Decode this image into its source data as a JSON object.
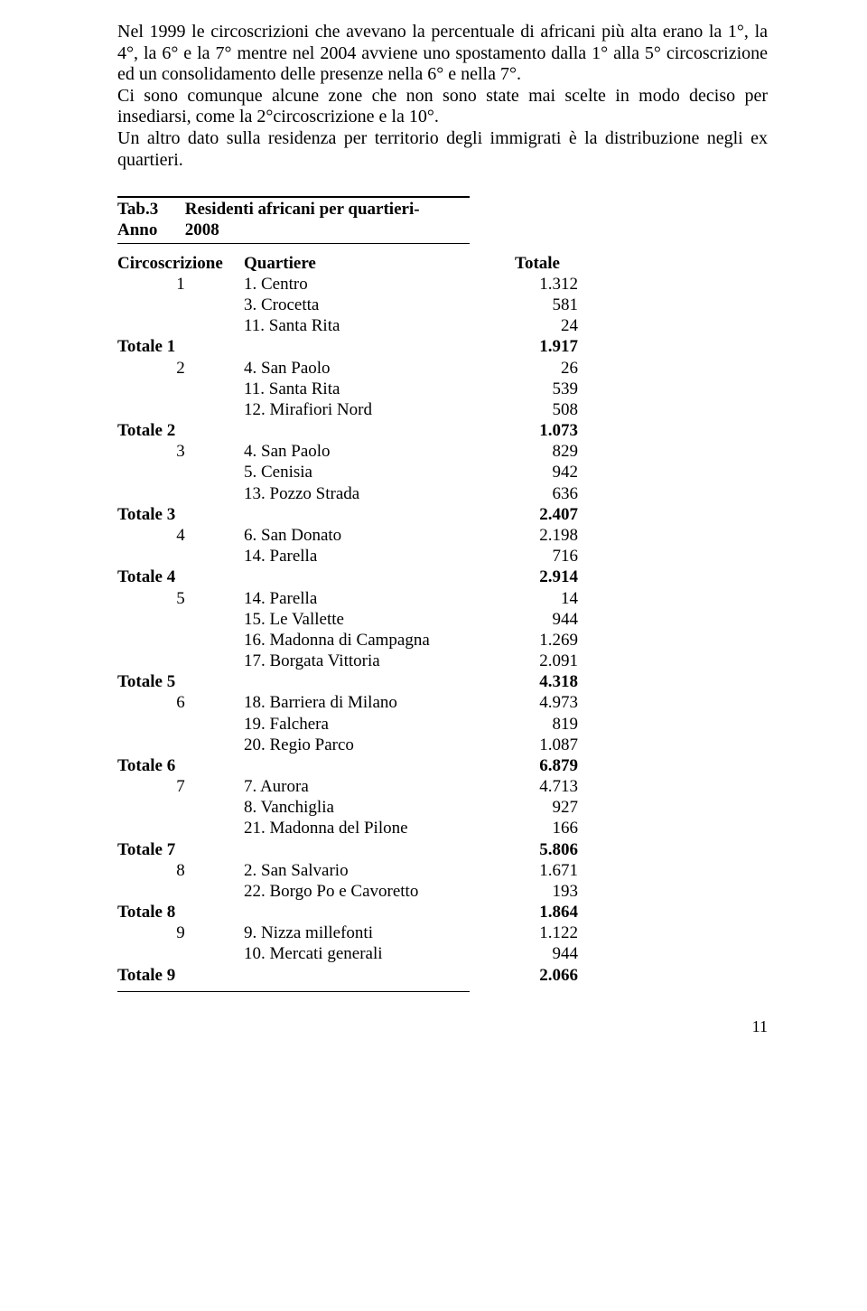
{
  "paragraph": "Nel 1999 le circoscrizioni che avevano la percentuale di africani più alta erano la 1°, la 4°, la 6° e la 7° mentre nel 2004 avviene  uno spostamento dalla 1° alla 5° circoscrizione ed un consolidamento delle presenze nella 6° e nella 7°.\nCi sono comunque alcune zone che non sono state mai scelte in modo deciso per insediarsi,  come la 2°circoscrizione e la 10°.\nUn altro dato sulla residenza per territorio degli immigrati è la distribuzione negli ex quartieri.",
  "caption": {
    "l1a": "Tab.3",
    "l1b": "Residenti africani per quartieri-",
    "l2a": "Anno",
    "l2b": "2008"
  },
  "headers": {
    "c1": "Circoscrizione",
    "c2": "Quartiere",
    "c3": "Totale"
  },
  "rows": [
    {
      "t": "d",
      "circ": "1",
      "q": "1. Centro",
      "v": "1.312"
    },
    {
      "t": "d",
      "circ": "",
      "q": "3. Crocetta",
      "v": "581"
    },
    {
      "t": "d",
      "circ": "",
      "q": "11. Santa Rita",
      "v": "24"
    },
    {
      "t": "tot",
      "label": "Totale 1",
      "v": "1.917"
    },
    {
      "t": "d",
      "circ": "2",
      "q": "4. San Paolo",
      "v": "26"
    },
    {
      "t": "d",
      "circ": "",
      "q": "11. Santa Rita",
      "v": "539"
    },
    {
      "t": "d",
      "circ": "",
      "q": "12. Mirafiori Nord",
      "v": "508"
    },
    {
      "t": "tot",
      "label": "Totale 2",
      "v": "1.073"
    },
    {
      "t": "d",
      "circ": "3",
      "q": "4. San Paolo",
      "v": "829"
    },
    {
      "t": "d",
      "circ": "",
      "q": "5. Cenisia",
      "v": "942"
    },
    {
      "t": "d",
      "circ": "",
      "q": "13. Pozzo Strada",
      "v": "636"
    },
    {
      "t": "tot",
      "label": "Totale 3",
      "v": "2.407"
    },
    {
      "t": "d",
      "circ": "4",
      "q": "6. San Donato",
      "v": "2.198"
    },
    {
      "t": "d",
      "circ": "",
      "q": "14. Parella",
      "v": "716"
    },
    {
      "t": "tot",
      "label": "Totale 4",
      "v": "2.914"
    },
    {
      "t": "d",
      "circ": "5",
      "q": "14. Parella",
      "v": "14"
    },
    {
      "t": "d",
      "circ": "",
      "q": "15. Le Vallette",
      "v": "944"
    },
    {
      "t": "d",
      "circ": "",
      "q": "16. Madonna di Campagna",
      "v": "1.269"
    },
    {
      "t": "d",
      "circ": "",
      "q": "17. Borgata Vittoria",
      "v": "2.091"
    },
    {
      "t": "tot",
      "label": "Totale 5",
      "v": "4.318"
    },
    {
      "t": "d",
      "circ": "6",
      "q": "18. Barriera di Milano",
      "v": "4.973"
    },
    {
      "t": "d",
      "circ": "",
      "q": "19. Falchera",
      "v": "819"
    },
    {
      "t": "d",
      "circ": "",
      "q": "20. Regio Parco",
      "v": "1.087"
    },
    {
      "t": "tot",
      "label": "Totale 6",
      "v": "6.879"
    },
    {
      "t": "d",
      "circ": "7",
      "q": "7. Aurora",
      "v": "4.713"
    },
    {
      "t": "d",
      "circ": "",
      "q": "8. Vanchiglia",
      "v": "927"
    },
    {
      "t": "d",
      "circ": "",
      "q": "21. Madonna del Pilone",
      "v": "166"
    },
    {
      "t": "tot",
      "label": "Totale 7",
      "v": "5.806"
    },
    {
      "t": "d",
      "circ": "8",
      "q": "2. San Salvario",
      "v": "1.671"
    },
    {
      "t": "d",
      "circ": "",
      "q": "22. Borgo Po e Cavoretto",
      "v": "193"
    },
    {
      "t": "tot",
      "label": "Totale 8",
      "v": "1.864"
    },
    {
      "t": "d",
      "circ": "9",
      "q": "9. Nizza millefonti",
      "v": "1.122"
    },
    {
      "t": "d",
      "circ": "",
      "q": "10. Mercati generali",
      "v": "944"
    },
    {
      "t": "tot",
      "label": "Totale 9",
      "v": "2.066"
    }
  ],
  "pagenum": "11"
}
